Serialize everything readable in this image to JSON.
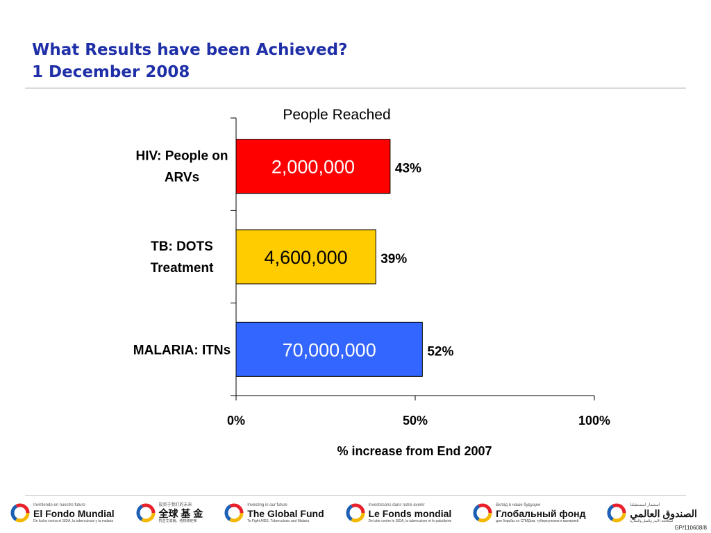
{
  "header": {
    "title_line1": "What Results have been Achieved?",
    "title_line2": "1 December 2008"
  },
  "chart_data": {
    "type": "bar",
    "orientation": "horizontal",
    "title": "People Reached",
    "xlabel": "% increase from End 2007",
    "ylabel": "",
    "xlim": [
      0,
      100
    ],
    "x_ticks": [
      "0%",
      "50%",
      "100%"
    ],
    "x_tick_values": [
      0,
      50,
      100
    ],
    "grid": false,
    "legend": "none",
    "categories": [
      "HIV: People on ARVs",
      "TB: DOTS Treatment",
      "MALARIA: ITNs"
    ],
    "category_lines": [
      [
        "HIV: People on",
        "ARVs"
      ],
      [
        "TB: DOTS",
        "Treatment"
      ],
      [
        "MALARIA: ITNs"
      ]
    ],
    "values": [
      43,
      39,
      52
    ],
    "value_labels": [
      "43%",
      "39%",
      "52%"
    ],
    "bar_labels": [
      "2,000,000",
      "4,600,000",
      "70,000,000"
    ],
    "bar_colors": [
      "#ff0000",
      "#ffcc00",
      "#3366ff"
    ],
    "bar_label_colors": [
      "#ffffff",
      "#000000",
      "#ffffff"
    ]
  },
  "footer": {
    "logos": [
      {
        "tagline": "Invirtiendo en nuestro futuro",
        "name": "El Fondo Mundial",
        "subtitle": "De lucha contra el SIDA, la tuberculosis y la malaria"
      },
      {
        "tagline": "投资于我们的未来",
        "name": "全球 基 金",
        "subtitle": "抗击艾滋病、结核和疟疾"
      },
      {
        "tagline": "Investing in our future",
        "name": "The Global Fund",
        "subtitle": "To Fight AIDS, Tuberculosis and Malaria"
      },
      {
        "tagline": "Investissons dans notre avenir",
        "name": "Le Fonds mondial",
        "subtitle": "De lutte contre le SIDA, la tuberculose et le paludisme"
      },
      {
        "tagline": "Вклад в наше будущее",
        "name": "Глобальный фонд",
        "subtitle": "для борьбы со СПИДом, туберкулезом и малярией"
      },
      {
        "tagline": "استثمار لمستقبلنا",
        "name": "الصندوق العالمي",
        "subtitle": "لمكافحة الأيدز والسل والملاريا"
      }
    ],
    "doc_ref": "GP/110608/8"
  },
  "colors": {
    "title": "#1f2fa8",
    "swirl_red": "#e8202a",
    "swirl_yellow": "#f5b800",
    "swirl_blue": "#1d5fb4"
  }
}
